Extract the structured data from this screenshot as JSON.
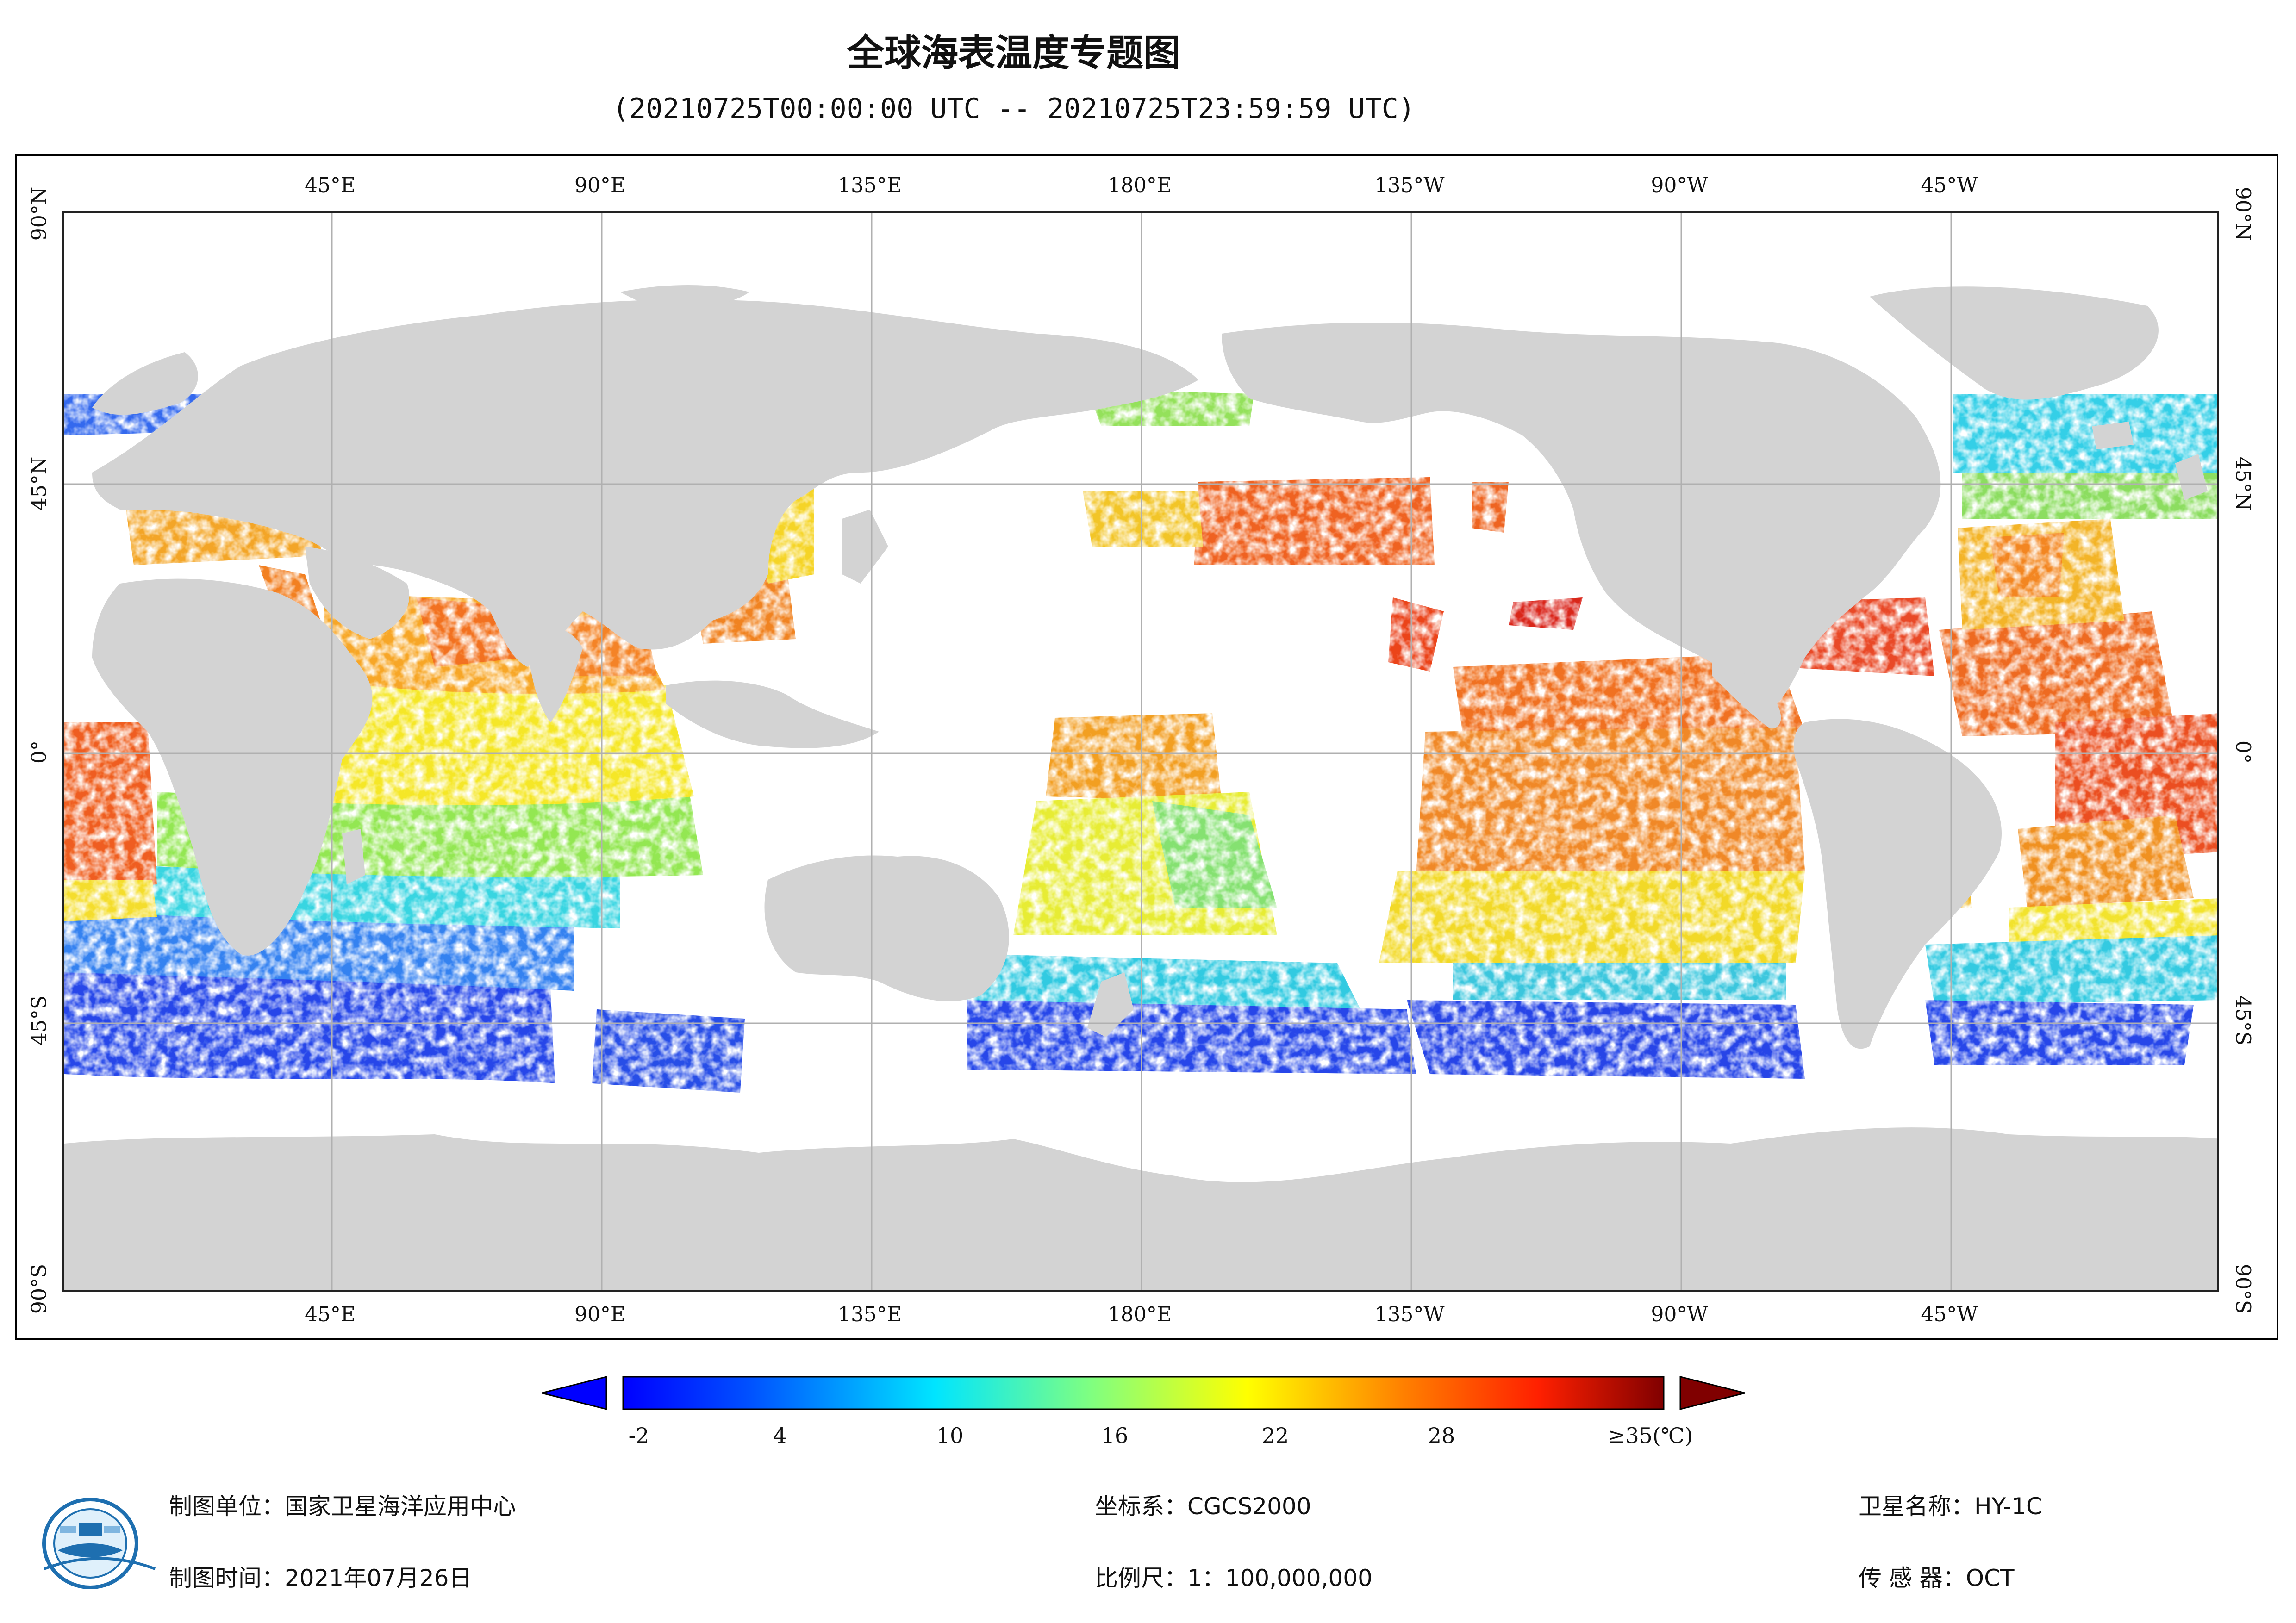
{
  "title": "全球海表温度专题图",
  "subtitle": "(20210725T00:00:00 UTC -- 20210725T23:59:59 UTC)",
  "map": {
    "land_color": "#d3d3d3",
    "grid_color": "#b0b0b0",
    "top_ticks": [
      "45°E",
      "90°E",
      "135°E",
      "180°E",
      "135°W",
      "90°W",
      "45°W"
    ],
    "bottom_ticks": [
      "45°E",
      "90°E",
      "135°E",
      "180°E",
      "135°W",
      "90°W",
      "45°W"
    ],
    "left_ticks": [
      "90°N",
      "45°N",
      "0°",
      "45°S",
      "90°S"
    ],
    "right_ticks": [
      "90°N",
      "45°N",
      "0°",
      "45°S",
      "90°S"
    ]
  },
  "colorbar": {
    "labels": [
      "-2",
      "4",
      "10",
      "16",
      "22",
      "28",
      "≥35(℃)"
    ],
    "min": -2,
    "max": 35,
    "under_color": "#0000ff",
    "over_color": "#800000"
  },
  "footer": {
    "producer": "制图单位：国家卫星海洋应用中心",
    "date": "制图时间：2021年07月26日",
    "crs": "坐标系：CGCS2000",
    "scale": "比例尺：1：100,000,000",
    "satellite": "卫星名称：HY-1C",
    "sensor": "传 感 器：OCT"
  },
  "logo": {
    "icon": "nsoas-logo-icon",
    "color": "#1e6fb0"
  }
}
